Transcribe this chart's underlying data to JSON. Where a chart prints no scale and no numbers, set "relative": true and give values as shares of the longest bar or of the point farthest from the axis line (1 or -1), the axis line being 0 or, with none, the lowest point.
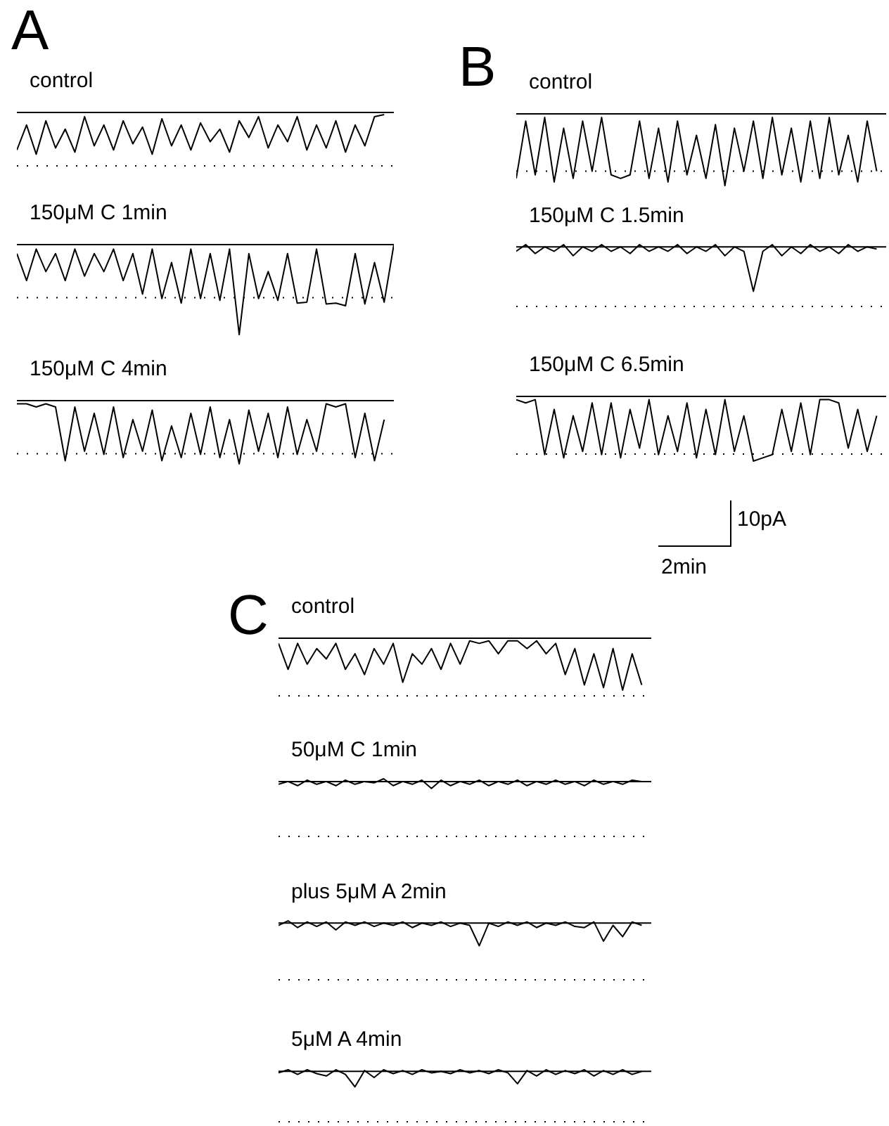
{
  "chart_data": [
    {
      "type": "line",
      "title": "control",
      "annotations": [
        "A"
      ],
      "color": "#000000",
      "relative": true,
      "marker": "none",
      "categories": [
        null,
        null,
        null,
        null,
        null,
        null,
        null,
        null,
        null,
        null,
        null,
        null,
        null,
        null,
        null,
        null,
        null,
        null,
        null,
        null,
        null,
        null,
        null,
        null,
        null,
        null,
        null,
        null,
        null,
        null,
        null,
        null,
        null,
        null,
        null,
        null,
        null,
        null,
        null,
        null
      ],
      "values": [
        -0.9,
        -0.3,
        -1,
        -0.2,
        -0.85,
        -0.4,
        -0.95,
        -0.1,
        -0.8,
        -0.3,
        -0.9,
        -0.2,
        -0.75,
        -0.35,
        -1,
        -0.15,
        -0.8,
        -0.3,
        -0.9,
        -0.25,
        -0.7,
        -0.4,
        -0.95,
        -0.2,
        -0.6,
        -0.1,
        -0.85,
        -0.3,
        -0.7,
        -0.1,
        -0.9,
        -0.3,
        -0.85,
        -0.2,
        -0.95,
        -0.3,
        -0.8,
        -0.1,
        -0.05,
        null
      ],
      "ref_lines": [
        {
          "axis": "y",
          "value": 0,
          "line_style": "solid"
        },
        {
          "axis": "y",
          "value": -1.28,
          "line_style": "dotted"
        }
      ]
    },
    {
      "type": "line",
      "title": "150μM C 1min",
      "color": "#000000",
      "relative": true,
      "marker": "none",
      "categories": [
        null,
        null,
        null,
        null,
        null,
        null,
        null,
        null,
        null,
        null,
        null,
        null,
        null,
        null,
        null,
        null,
        null,
        null,
        null,
        null,
        null,
        null,
        null,
        null,
        null,
        null,
        null,
        null,
        null,
        null,
        null,
        null,
        null,
        null,
        null,
        null,
        null,
        null,
        null,
        null
      ],
      "values": [
        -0.1,
        -0.4,
        -0.05,
        -0.3,
        -0.1,
        -0.4,
        -0.05,
        -0.35,
        -0.1,
        -0.3,
        -0.05,
        -0.4,
        -0.1,
        -0.55,
        -0.05,
        -0.6,
        -0.2,
        -0.65,
        -0.05,
        -0.6,
        -0.1,
        -0.62,
        -0.05,
        -1,
        -0.1,
        -0.6,
        -0.3,
        -0.62,
        -0.1,
        -0.65,
        -0.64,
        -0.05,
        -0.66,
        -0.65,
        -0.68,
        -0.1,
        -0.66,
        -0.2,
        -0.64,
        0
      ],
      "ref_lines": [
        {
          "axis": "y",
          "value": 0,
          "line_style": "solid"
        },
        {
          "axis": "y",
          "value": -0.59,
          "line_style": "dotted"
        }
      ]
    },
    {
      "type": "line",
      "title": "150μM C 4min",
      "color": "#000000",
      "relative": true,
      "marker": "none",
      "categories": [
        null,
        null,
        null,
        null,
        null,
        null,
        null,
        null,
        null,
        null,
        null,
        null,
        null,
        null,
        null,
        null,
        null,
        null,
        null,
        null,
        null,
        null,
        null,
        null,
        null,
        null,
        null,
        null,
        null,
        null,
        null,
        null,
        null,
        null,
        null,
        null,
        null,
        null,
        null,
        null
      ],
      "values": [
        -0.05,
        -0.05,
        -0.1,
        -0.05,
        -0.1,
        -0.95,
        -0.1,
        -0.8,
        -0.2,
        -0.85,
        -0.1,
        -0.9,
        -0.3,
        -0.8,
        -0.15,
        -0.95,
        -0.4,
        -0.9,
        -0.2,
        -0.85,
        -0.1,
        -0.9,
        -0.3,
        -1,
        -0.15,
        -0.8,
        -0.2,
        -0.9,
        -0.1,
        -0.85,
        -0.3,
        -0.8,
        -0.05,
        -0.1,
        -0.05,
        -0.9,
        -0.2,
        -0.95,
        -0.3,
        null
      ],
      "ref_lines": [
        {
          "axis": "y",
          "value": 0,
          "line_style": "solid"
        },
        {
          "axis": "y",
          "value": -0.84,
          "line_style": "dotted"
        }
      ]
    },
    {
      "type": "line",
      "title": "control",
      "annotations": [
        "B"
      ],
      "color": "#000000",
      "relative": true,
      "marker": "none",
      "categories": [
        null,
        null,
        null,
        null,
        null,
        null,
        null,
        null,
        null,
        null,
        null,
        null,
        null,
        null,
        null,
        null,
        null,
        null,
        null,
        null,
        null,
        null,
        null,
        null,
        null,
        null,
        null,
        null,
        null,
        null,
        null,
        null,
        null,
        null,
        null,
        null,
        null,
        null,
        null,
        null
      ],
      "values": [
        -0.9,
        -0.1,
        -0.85,
        -0.05,
        -0.95,
        -0.2,
        -0.9,
        -0.1,
        -0.8,
        -0.05,
        -0.85,
        -0.9,
        -0.85,
        -0.1,
        -0.9,
        -0.2,
        -0.95,
        -0.1,
        -0.85,
        -0.3,
        -0.9,
        -0.15,
        -1,
        -0.2,
        -0.8,
        -0.1,
        -0.9,
        -0.05,
        -0.85,
        -0.2,
        -0.95,
        -0.1,
        -0.9,
        -0.05,
        -0.85,
        -0.3,
        -0.95,
        -0.1,
        -0.8,
        null
      ],
      "ref_lines": [
        {
          "axis": "y",
          "value": 0,
          "line_style": "solid"
        },
        {
          "axis": "y",
          "value": -0.8,
          "line_style": "dotted"
        }
      ]
    },
    {
      "type": "line",
      "title": "150μM C 1.5min",
      "color": "#000000",
      "relative": true,
      "marker": "none",
      "categories": [
        null,
        null,
        null,
        null,
        null,
        null,
        null,
        null,
        null,
        null,
        null,
        null,
        null,
        null,
        null,
        null,
        null,
        null,
        null,
        null,
        null,
        null,
        null,
        null,
        null,
        null,
        null,
        null,
        null,
        null,
        null,
        null,
        null,
        null,
        null,
        null,
        null,
        null,
        null,
        null
      ],
      "values": [
        -0.1,
        0.05,
        -0.15,
        0,
        -0.1,
        0.05,
        -0.2,
        0,
        -0.1,
        0.05,
        -0.1,
        0,
        -0.15,
        0.05,
        -0.1,
        0,
        -0.1,
        0.05,
        -0.15,
        0,
        -0.1,
        0.05,
        -0.2,
        0,
        -0.1,
        -1,
        -0.1,
        0.05,
        -0.2,
        0,
        -0.15,
        0.05,
        -0.1,
        0,
        -0.15,
        0.05,
        -0.1,
        0,
        -0.05,
        null
      ],
      "ref_lines": [
        {
          "axis": "y",
          "value": 0,
          "line_style": "solid"
        },
        {
          "axis": "y",
          "value": -1.34,
          "line_style": "dotted"
        }
      ]
    },
    {
      "type": "line",
      "title": "150μM C 6.5min",
      "annotations": [
        "10pA",
        "2min"
      ],
      "color": "#000000",
      "relative": true,
      "marker": "none",
      "categories": [
        null,
        null,
        null,
        null,
        null,
        null,
        null,
        null,
        null,
        null,
        null,
        null,
        null,
        null,
        null,
        null,
        null,
        null,
        null,
        null,
        null,
        null,
        null,
        null,
        null,
        null,
        null,
        null,
        null,
        null,
        null,
        null,
        null,
        null,
        null,
        null,
        null,
        null,
        null,
        null
      ],
      "values": [
        -0.05,
        -0.1,
        -0.05,
        -0.9,
        -0.2,
        -0.95,
        -0.3,
        -0.85,
        -0.1,
        -0.9,
        -0.1,
        -0.95,
        -0.2,
        -0.8,
        -0.05,
        -0.9,
        -0.3,
        -0.85,
        -0.1,
        -0.95,
        -0.2,
        -0.9,
        -0.05,
        -0.85,
        -0.3,
        -1,
        -0.95,
        -0.9,
        -0.2,
        -0.85,
        -0.1,
        -0.9,
        -0.05,
        -0.05,
        -0.1,
        -0.8,
        -0.2,
        -0.85,
        -0.3,
        null
      ],
      "ref_lines": [
        {
          "axis": "y",
          "value": 0,
          "line_style": "solid"
        },
        {
          "axis": "y",
          "value": -0.89,
          "line_style": "dotted"
        }
      ]
    },
    {
      "type": "line",
      "title": "control",
      "annotations": [
        "C"
      ],
      "color": "#000000",
      "relative": true,
      "marker": "none",
      "categories": [
        null,
        null,
        null,
        null,
        null,
        null,
        null,
        null,
        null,
        null,
        null,
        null,
        null,
        null,
        null,
        null,
        null,
        null,
        null,
        null,
        null,
        null,
        null,
        null,
        null,
        null,
        null,
        null,
        null,
        null,
        null,
        null,
        null,
        null,
        null,
        null,
        null,
        null,
        null,
        null
      ],
      "values": [
        -0.1,
        -0.6,
        -0.1,
        -0.5,
        -0.2,
        -0.4,
        -0.1,
        -0.6,
        -0.3,
        -0.7,
        -0.2,
        -0.5,
        -0.1,
        -0.85,
        -0.3,
        -0.5,
        -0.2,
        -0.6,
        -0.1,
        -0.5,
        -0.05,
        -0.1,
        -0.05,
        -0.3,
        -0.05,
        -0.05,
        -0.2,
        -0.05,
        -0.3,
        -0.1,
        -0.7,
        -0.2,
        -0.9,
        -0.3,
        -0.95,
        -0.2,
        -1,
        -0.3,
        -0.9,
        null
      ],
      "ref_lines": [
        {
          "axis": "y",
          "value": 0,
          "line_style": "solid"
        },
        {
          "axis": "y",
          "value": -1.11,
          "line_style": "dotted"
        }
      ]
    },
    {
      "type": "line",
      "title": "50μM C 1min",
      "color": "#000000",
      "relative": true,
      "marker": "none",
      "categories": [
        null,
        null,
        null,
        null,
        null,
        null,
        null,
        null,
        null,
        null,
        null,
        null,
        null,
        null,
        null,
        null,
        null,
        null,
        null,
        null,
        null,
        null,
        null,
        null,
        null,
        null,
        null,
        null,
        null,
        null,
        null,
        null,
        null,
        null,
        null,
        null,
        null,
        null,
        null,
        null
      ],
      "values": [
        -0.4,
        0,
        -0.6,
        0.2,
        -0.4,
        0,
        -0.6,
        0.2,
        -0.4,
        0,
        -0.2,
        0.4,
        -0.6,
        0,
        -0.4,
        0.2,
        -1,
        0.2,
        -0.6,
        0,
        -0.4,
        0.2,
        -0.6,
        0,
        -0.4,
        0.2,
        -0.6,
        0,
        -0.4,
        0.2,
        -0.4,
        0,
        -0.6,
        0.2,
        -0.4,
        0,
        -0.4,
        0.2,
        0,
        null
      ],
      "ref_lines": [
        {
          "axis": "y",
          "value": 0,
          "line_style": "solid"
        },
        {
          "axis": "y",
          "value": -8,
          "line_style": "dotted"
        }
      ]
    },
    {
      "type": "line",
      "title": "plus 5μM A 2min",
      "color": "#000000",
      "relative": true,
      "marker": "none",
      "categories": [
        null,
        null,
        null,
        null,
        null,
        null,
        null,
        null,
        null,
        null,
        null,
        null,
        null,
        null,
        null,
        null,
        null,
        null,
        null,
        null,
        null,
        null,
        null,
        null,
        null,
        null,
        null,
        null,
        null,
        null,
        null,
        null,
        null,
        null,
        null,
        null,
        null,
        null,
        null,
        null
      ],
      "values": [
        -0.1,
        0.1,
        -0.2,
        0.05,
        -0.15,
        0.05,
        -0.3,
        0.05,
        -0.1,
        0.05,
        -0.15,
        0,
        -0.1,
        0.05,
        -0.2,
        0,
        -0.1,
        0.05,
        -0.15,
        0,
        -0.1,
        -1,
        0,
        -0.15,
        0.05,
        -0.1,
        0.05,
        -0.2,
        0,
        -0.1,
        0.05,
        -0.15,
        -0.2,
        0.05,
        -0.8,
        -0.1,
        -0.6,
        0.05,
        -0.1,
        null
      ],
      "ref_lines": [
        {
          "axis": "y",
          "value": 0,
          "line_style": "solid"
        },
        {
          "axis": "y",
          "value": -2.5,
          "line_style": "dotted"
        }
      ]
    },
    {
      "type": "line",
      "title": "5μM A 4min",
      "color": "#000000",
      "relative": true,
      "marker": "none",
      "categories": [
        null,
        null,
        null,
        null,
        null,
        null,
        null,
        null,
        null,
        null,
        null,
        null,
        null,
        null,
        null,
        null,
        null,
        null,
        null,
        null,
        null,
        null,
        null,
        null,
        null,
        null,
        null,
        null,
        null,
        null,
        null,
        null,
        null,
        null,
        null,
        null,
        null,
        null,
        null,
        null
      ],
      "values": [
        -0.1,
        0.1,
        -0.2,
        0.1,
        -0.15,
        -0.3,
        0.1,
        -0.2,
        -1,
        0.05,
        -0.4,
        0.1,
        -0.15,
        0.05,
        -0.2,
        0.1,
        -0.1,
        0,
        -0.15,
        0.1,
        -0.1,
        0.05,
        -0.15,
        0.1,
        -0.1,
        -0.8,
        0.05,
        -0.3,
        0.1,
        -0.2,
        0.05,
        -0.15,
        0.1,
        -0.3,
        0.05,
        -0.2,
        0.1,
        -0.2,
        0,
        null
      ],
      "ref_lines": [
        {
          "axis": "y",
          "value": 0,
          "line_style": "solid"
        },
        {
          "axis": "y",
          "value": -3.25,
          "line_style": "dotted"
        }
      ]
    }
  ]
}
